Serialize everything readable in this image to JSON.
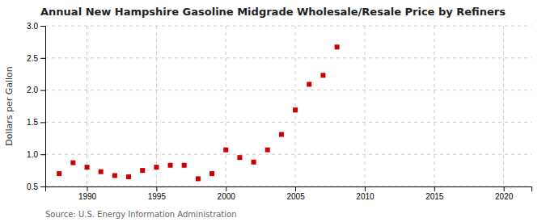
{
  "chart_data": {
    "type": "scatter",
    "title": "Annual New Hampshire Gasoline Midgrade Wholesale/Resale Price by Refiners",
    "ylabel": "Dollars per Gallon",
    "annotations": [
      "Source: U.S. Energy Information Administration"
    ],
    "x": [
      1988,
      1989,
      1990,
      1991,
      1992,
      1993,
      1994,
      1995,
      1996,
      1997,
      1998,
      1999,
      2000,
      2001,
      2002,
      2003,
      2004,
      2005,
      2006,
      2007,
      2008
    ],
    "values": [
      0.7,
      0.87,
      0.8,
      0.73,
      0.67,
      0.65,
      0.75,
      0.8,
      0.83,
      0.83,
      0.62,
      0.7,
      1.07,
      0.95,
      0.88,
      1.07,
      1.31,
      1.69,
      2.09,
      2.23,
      2.67
    ],
    "color": "#cc0000",
    "marker": "square",
    "xlim": [
      1987,
      2022
    ],
    "ylim": [
      0.5,
      3.0
    ],
    "xticks": [
      1990,
      1995,
      2000,
      2005,
      2010,
      2015,
      2020
    ],
    "yticks": [
      0.5,
      {
        "value": 1.0,
        "label": "1.0"
      },
      1.5,
      {
        "value": 2.0,
        "label": "2.0"
      },
      2.5,
      {
        "value": 3.0,
        "label": "3.0"
      }
    ],
    "grid": true
  }
}
